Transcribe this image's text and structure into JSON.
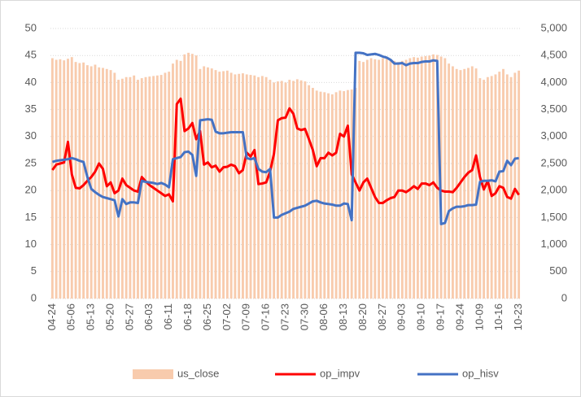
{
  "chart_data": {
    "type": "bar_line_combo",
    "categories": [
      "04-24",
      null,
      null,
      null,
      null,
      "05-06",
      null,
      null,
      null,
      null,
      "05-13",
      null,
      null,
      null,
      null,
      "05-20",
      null,
      null,
      null,
      null,
      "05-27",
      null,
      null,
      null,
      null,
      "06-03",
      null,
      null,
      null,
      null,
      "06-11",
      null,
      null,
      null,
      null,
      "06-18",
      null,
      null,
      null,
      null,
      "06-25",
      null,
      null,
      null,
      null,
      "07-02",
      null,
      null,
      null,
      null,
      "07-09",
      null,
      null,
      null,
      null,
      "07-16",
      null,
      null,
      null,
      null,
      "07-23",
      null,
      null,
      null,
      null,
      "07-30",
      null,
      null,
      null,
      null,
      "08-06",
      null,
      null,
      null,
      null,
      "08-13",
      null,
      null,
      null,
      null,
      "08-20",
      null,
      null,
      null,
      null,
      "08-27",
      null,
      null,
      null,
      null,
      "09-03",
      null,
      null,
      null,
      null,
      "09-10",
      null,
      null,
      null,
      null,
      "09-17",
      null,
      null,
      null,
      null,
      "09-24",
      null,
      null,
      null,
      null,
      "10-09",
      null,
      null,
      null,
      null,
      "10-16",
      null,
      null,
      null,
      null,
      "10-23"
    ],
    "series": [
      {
        "name": "us_close",
        "type": "bar",
        "axis": "y2",
        "color": "#f8cbad",
        "values": [
          4450,
          4420,
          4430,
          4410,
          4440,
          4470,
          4380,
          4360,
          4370,
          4320,
          4300,
          4330,
          4280,
          4270,
          4250,
          4230,
          4180,
          4050,
          4070,
          4100,
          4100,
          4130,
          4050,
          4080,
          4100,
          4110,
          4120,
          4130,
          4140,
          4180,
          4200,
          4350,
          4420,
          4400,
          4520,
          4550,
          4530,
          4500,
          4250,
          4300,
          4280,
          4260,
          4230,
          4200,
          4210,
          4220,
          4180,
          4150,
          4160,
          4170,
          4150,
          4140,
          4130,
          4100,
          4120,
          4100,
          4050,
          4000,
          4020,
          4030,
          4000,
          4050,
          4030,
          4060,
          4040,
          4020,
          3950,
          3900,
          3850,
          3830,
          3820,
          3800,
          3780,
          3820,
          3850,
          3840,
          3860,
          3870,
          3900,
          4400,
          4380,
          4420,
          4450,
          4430,
          4420,
          4450,
          4460,
          4420,
          4400,
          4380,
          4400,
          4420,
          4450,
          4470,
          4460,
          4480,
          4490,
          4500,
          4520,
          4510,
          4480,
          4450,
          4350,
          4300,
          4250,
          4230,
          4250,
          4270,
          4300,
          4260,
          4080,
          4050,
          4100,
          4120,
          4150,
          4200,
          4250,
          4150,
          4100,
          4180,
          4220
        ]
      },
      {
        "name": "op_impv",
        "type": "line",
        "color": "#ff0000",
        "values": [
          23.8,
          24.8,
          25,
          25.2,
          29,
          23,
          20.5,
          20.4,
          21,
          21.8,
          22.5,
          23.5,
          25,
          24,
          20.8,
          21.5,
          19.5,
          20,
          22.2,
          21,
          20.5,
          20,
          19.8,
          22.5,
          21.7,
          21,
          20.5,
          20,
          19.5,
          19,
          19.3,
          18,
          36,
          37,
          31,
          31.5,
          32.5,
          29.5,
          31,
          24.8,
          25.2,
          24.3,
          24.6,
          23.5,
          24.3,
          24.4,
          24.8,
          24.5,
          23.2,
          23.8,
          27,
          26.3,
          27.5,
          21.2,
          21.3,
          21.5,
          23.5,
          26.8,
          33,
          33.4,
          33.5,
          35.2,
          34.2,
          31.5,
          31.2,
          31.4,
          29.5,
          27.5,
          24.5,
          26,
          26,
          27,
          26.5,
          27,
          30.5,
          30,
          32,
          23,
          21.5,
          20,
          21.5,
          22.2,
          20.5,
          18.8,
          17.7,
          17.7,
          18.2,
          18.6,
          18.8,
          20,
          20,
          19.7,
          20.2,
          20.8,
          20.3,
          21.3,
          21.3,
          21,
          21.5,
          20.5,
          20,
          19.8,
          19.8,
          19.7,
          20.5,
          21.5,
          22.5,
          23.3,
          23.8,
          26.5,
          22.5,
          20.2,
          21.8,
          19,
          19.5,
          20.8,
          20.5,
          18.8,
          18.5,
          20.3,
          19.2
        ]
      },
      {
        "name": "op_hisv",
        "type": "line",
        "color": "#4472c4",
        "values": [
          25.3,
          25.5,
          25.6,
          25.7,
          25.8,
          26,
          25.8,
          25.5,
          25.3,
          22.5,
          20.3,
          19.7,
          19.2,
          18.8,
          18.6,
          18.4,
          18.2,
          15.2,
          18.4,
          17.5,
          17.8,
          17.8,
          17.7,
          21.8,
          21.6,
          21.5,
          21.4,
          21.2,
          21.4,
          21.1,
          20.6,
          25.8,
          26,
          26.2,
          27.1,
          27.2,
          26.6,
          22.7,
          33,
          33.1,
          33.2,
          33.1,
          30.9,
          30.6,
          30.6,
          30.7,
          30.8,
          30.8,
          30.8,
          30.8,
          26,
          25.8,
          26,
          24,
          23.5,
          23.4,
          24,
          15,
          15,
          15.5,
          15.8,
          16.1,
          16.6,
          16.8,
          17,
          17.2,
          17.6,
          18,
          18.1,
          17.8,
          17.6,
          17.5,
          17.4,
          17.2,
          17.2,
          17.6,
          17.5,
          14.5,
          45.5,
          45.5,
          45.4,
          45.1,
          45.2,
          45.3,
          45.1,
          44.8,
          44.6,
          44.2,
          43.5,
          43.5,
          43.6,
          43.2,
          43.5,
          43.6,
          43.6,
          43.8,
          43.9,
          43.9,
          44.1,
          44,
          13.8,
          14,
          16.2,
          16.7,
          17,
          17,
          17.1,
          17.3,
          17.3,
          17.4,
          21.6,
          21.8,
          21.8,
          21.9,
          21.7,
          23.5,
          23.6,
          25.5,
          24.7,
          25.9,
          26
        ]
      }
    ],
    "ylim": [
      0,
      50
    ],
    "yticks": [
      0,
      5,
      10,
      15,
      20,
      25,
      30,
      35,
      40,
      45,
      50
    ],
    "y2lim": [
      0,
      5000
    ],
    "y2ticks": [
      0,
      {
        "value": 500,
        "label": "500"
      },
      {
        "value": 1000,
        "label": "1,000"
      },
      {
        "value": 1500,
        "label": "1,500"
      },
      {
        "value": 2000,
        "label": "2,000"
      },
      {
        "value": 2500,
        "label": "2,500"
      },
      {
        "value": 3000,
        "label": "3,000"
      },
      {
        "value": 3500,
        "label": "3,500"
      },
      {
        "value": 4000,
        "label": "4,000"
      },
      {
        "value": 4500,
        "label": "4,500"
      },
      {
        "value": 5000,
        "label": "5,000"
      }
    ],
    "grid": true,
    "legend": "bottom"
  }
}
